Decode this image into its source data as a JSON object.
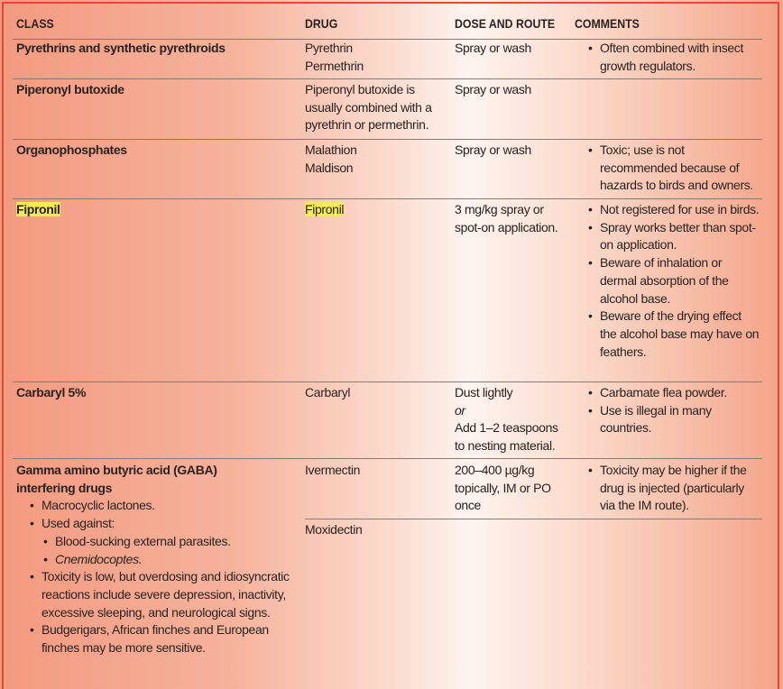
{
  "headers": {
    "class": "CLASS",
    "drug": "DRUG",
    "dose": "DOSE AND ROUTE",
    "comments": "COMMENTS"
  },
  "colors": {
    "border": "#e2473b",
    "highlight": "#f4ea5a",
    "background_edge": "#f39a80",
    "background_center": "#fef4ef"
  },
  "rows": [
    {
      "class": "Pyrethrins and synthetic pyrethroids",
      "drug": [
        "Pyrethrin",
        "Permethrin"
      ],
      "dose": "Spray or wash",
      "comments": [
        "Often combined with insect growth regulators."
      ]
    },
    {
      "class": "Piperonyl butoxide",
      "drug": [
        "Piperonyl butoxide is usually combined with a pyrethrin or permethrin."
      ],
      "dose": "Spray or wash",
      "comments": []
    },
    {
      "class": "Organophosphates",
      "drug": [
        "Malathion",
        "Maldison"
      ],
      "dose": "Spray or wash",
      "comments": [
        "Toxic; use is not recommended because of hazards to birds and owners."
      ]
    },
    {
      "class": "Fipronil",
      "drug": [
        "Fipronil"
      ],
      "dose": "3 mg/kg spray or spot-on application.",
      "comments": [
        "Not registered for use in birds.",
        "Spray works better than spot-on application.",
        "Beware of inhalation or dermal absorption of the alcohol base.",
        "Beware of the drying effect the alcohol base may have on feathers."
      ],
      "highlighted": true
    },
    {
      "class": "Carbaryl 5%",
      "drug": [
        "Carbaryl"
      ],
      "dose": [
        "Dust lightly",
        "or",
        "Add 1–2 teaspoons to nesting material."
      ],
      "comments": [
        "Carbamate flea powder.",
        "Use is illegal in many countries."
      ]
    },
    {
      "class": "Gamma amino butyric acid (GABA) interfering drugs",
      "class_notes": [
        "Macrocyclic lactones.",
        "Used against:",
        "Blood-sucking external parasites.",
        "Cnemidocoptes.",
        "Toxicity is low, but overdosing and idiosyncratic reactions include severe depression, inactivity, excessive sleeping, and neurological signs.",
        "Budgerigars, African finches and European finches may be more sensitive."
      ],
      "sub": [
        {
          "drug": "Ivermectin",
          "dose": "200–400 µg/kg topically, IM or PO once",
          "comments": [
            "Toxicity may be higher if the drug is injected (particularly via the IM route)."
          ]
        },
        {
          "drug": "Moxidectin"
        }
      ]
    }
  ]
}
